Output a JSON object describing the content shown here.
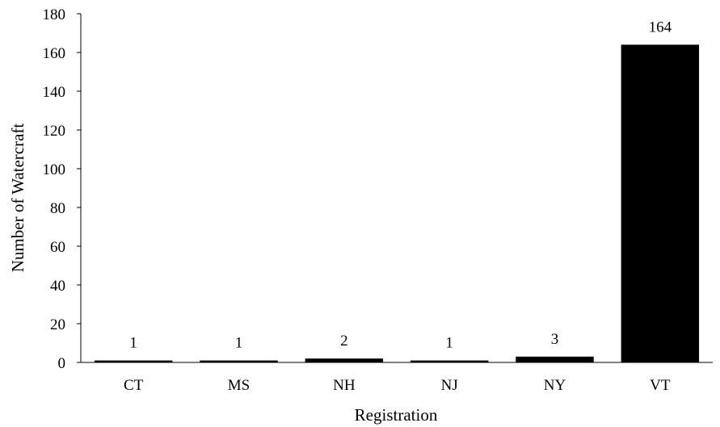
{
  "chart_data": {
    "type": "bar",
    "title": "",
    "xlabel": "Registration",
    "ylabel": "Number of Watercraft",
    "categories": [
      "CT",
      "MS",
      "NH",
      "NJ",
      "NY",
      "VT"
    ],
    "values": [
      1,
      1,
      2,
      1,
      3,
      164
    ],
    "data_labels": [
      "1",
      "1",
      "2",
      "1",
      "3",
      "164"
    ],
    "ylim": [
      0,
      180
    ],
    "yticks": [
      0,
      20,
      40,
      60,
      80,
      100,
      120,
      140,
      160,
      180
    ],
    "bar_color": "#000000",
    "grid": false,
    "legend": "none"
  }
}
